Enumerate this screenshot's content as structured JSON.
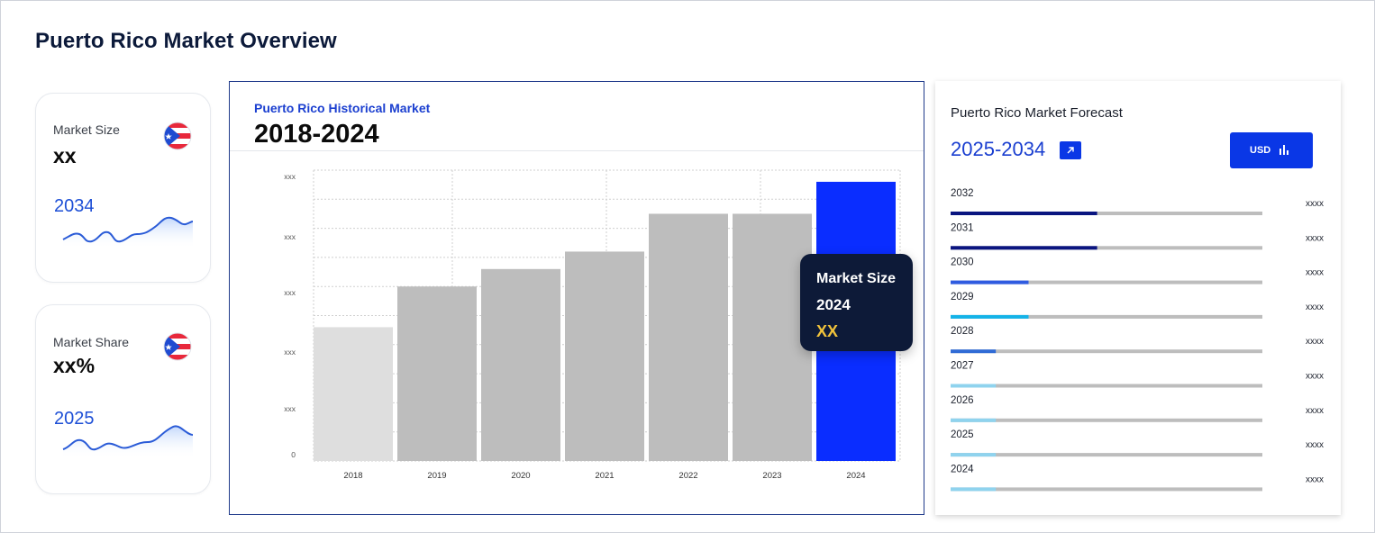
{
  "page": {
    "title": "Puerto Rico Market Overview"
  },
  "kpis": {
    "size": {
      "label": "Market Size",
      "value": "xx",
      "year": "2034",
      "flag": "puerto-rico-flag"
    },
    "share": {
      "label": "Market Share",
      "value": "xx%",
      "year": "2025",
      "flag": "puerto-rico-flag"
    }
  },
  "historical": {
    "subtitle": "Puerto Rico Historical Market",
    "title": "2018-2024",
    "tooltip": {
      "label": "Market Size",
      "year": "2024",
      "value": "XX"
    }
  },
  "forecast": {
    "title": "Puerto Rico Market Forecast",
    "range": "2025-2034",
    "currency_button": "USD",
    "rows": [
      {
        "year": "2032",
        "value": "xxxx",
        "fill": 0.47,
        "color": "#0a1580"
      },
      {
        "year": "2031",
        "value": "xxxx",
        "fill": 0.47,
        "color": "#0a1580"
      },
      {
        "year": "2030",
        "value": "xxxx",
        "fill": 0.25,
        "color": "#2f5be0"
      },
      {
        "year": "2029",
        "value": "xxxx",
        "fill": 0.25,
        "color": "#14b3e8"
      },
      {
        "year": "2028",
        "value": "xxxx",
        "fill": 0.145,
        "color": "#2f6bd6"
      },
      {
        "year": "2027",
        "value": "xxxx",
        "fill": 0.145,
        "color": "#8fd3ee"
      },
      {
        "year": "2026",
        "value": "xxxx",
        "fill": 0.145,
        "color": "#8fd3ee"
      },
      {
        "year": "2025",
        "value": "xxxx",
        "fill": 0.145,
        "color": "#8fd3ee"
      },
      {
        "year": "2024",
        "value": "xxxx",
        "fill": 0.145,
        "color": "#8fd3ee"
      }
    ]
  },
  "chart_data": {
    "type": "bar",
    "categories": [
      "2018",
      "2019",
      "2020",
      "2021",
      "2022",
      "2023",
      "2024"
    ],
    "values": [
      46,
      60,
      66,
      72,
      85,
      85,
      96
    ],
    "y_tick_labels": [
      "0",
      "xxx",
      "xxx",
      "xxx",
      "xxx",
      "xxx"
    ],
    "ylim": [
      0,
      100
    ],
    "grid": true,
    "colors": [
      "#dedede",
      "#bdbdbd",
      "#bdbdbd",
      "#bdbdbd",
      "#bdbdbd",
      "#bdbdbd",
      "#0a2dff"
    ]
  }
}
